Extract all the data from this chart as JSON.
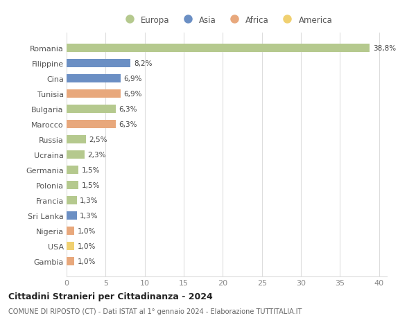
{
  "categories": [
    "Romania",
    "Filippine",
    "Cina",
    "Tunisia",
    "Bulgaria",
    "Marocco",
    "Russia",
    "Ucraina",
    "Germania",
    "Polonia",
    "Francia",
    "Sri Lanka",
    "Nigeria",
    "USA",
    "Gambia"
  ],
  "values": [
    38.8,
    8.2,
    6.9,
    6.9,
    6.3,
    6.3,
    2.5,
    2.3,
    1.5,
    1.5,
    1.3,
    1.3,
    1.0,
    1.0,
    1.0
  ],
  "labels": [
    "38,8%",
    "8,2%",
    "6,9%",
    "6,9%",
    "6,3%",
    "6,3%",
    "2,5%",
    "2,3%",
    "1,5%",
    "1,5%",
    "1,3%",
    "1,3%",
    "1,0%",
    "1,0%",
    "1,0%"
  ],
  "colors": [
    "#b5c98e",
    "#6b8fc4",
    "#6b8fc4",
    "#e8a87c",
    "#b5c98e",
    "#e8a87c",
    "#b5c98e",
    "#b5c98e",
    "#b5c98e",
    "#b5c98e",
    "#b5c98e",
    "#6b8fc4",
    "#e8a87c",
    "#f0d070",
    "#e8a87c"
  ],
  "legend_labels": [
    "Europa",
    "Asia",
    "Africa",
    "America"
  ],
  "legend_colors": [
    "#b5c98e",
    "#6b8fc4",
    "#e8a87c",
    "#f0d070"
  ],
  "xlim": [
    0,
    41
  ],
  "xticks": [
    0,
    5,
    10,
    15,
    20,
    25,
    30,
    35,
    40
  ],
  "title": "Cittadini Stranieri per Cittadinanza - 2024",
  "subtitle": "COMUNE DI RIPOSTO (CT) - Dati ISTAT al 1° gennaio 2024 - Elaborazione TUTTITALIA.IT",
  "bg_color": "#ffffff",
  "grid_color": "#dddddd",
  "bar_height": 0.55
}
